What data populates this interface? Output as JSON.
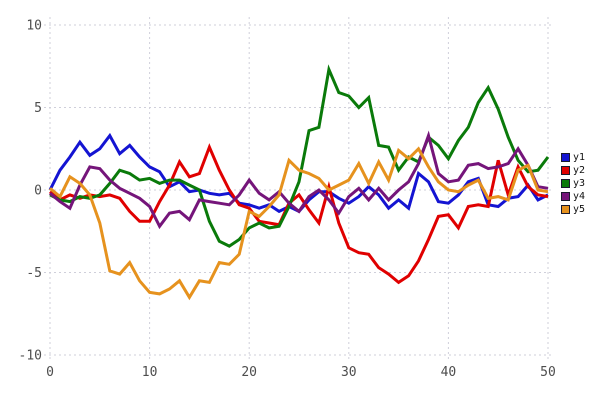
{
  "chart_data": {
    "type": "line",
    "title": "",
    "xlabel": "",
    "ylabel": "",
    "xlim": [
      0,
      50
    ],
    "ylim": [
      -10,
      10
    ],
    "x_ticks": [
      0,
      10,
      20,
      30,
      40,
      50
    ],
    "y_ticks": [
      -10,
      -5,
      0,
      5,
      10
    ],
    "grid": "dotted",
    "legend_position": "right-outside",
    "grid_color": "#cfcfda",
    "tick_label_color": "#4d4d4d",
    "x": [
      0,
      1,
      2,
      3,
      4,
      5,
      6,
      7,
      8,
      9,
      10,
      11,
      12,
      13,
      14,
      15,
      16,
      17,
      18,
      19,
      20,
      21,
      22,
      23,
      24,
      25,
      26,
      27,
      28,
      29,
      30,
      31,
      32,
      33,
      34,
      35,
      36,
      37,
      38,
      39,
      40,
      41,
      42,
      43,
      44,
      45,
      46,
      47,
      48,
      49,
      50
    ],
    "series": [
      {
        "name": "y1",
        "color": "#1414d2",
        "values": [
          0.0,
          1.2,
          2.0,
          2.9,
          2.1,
          2.5,
          3.3,
          2.2,
          2.7,
          2.0,
          1.4,
          1.1,
          0.2,
          0.5,
          -0.1,
          0.0,
          -0.2,
          -0.3,
          -0.2,
          -0.8,
          -0.9,
          -1.1,
          -0.9,
          -1.3,
          -1.0,
          -1.3,
          -0.6,
          -0.1,
          -0.1,
          -0.5,
          -0.8,
          -0.4,
          0.2,
          -0.3,
          -1.1,
          -0.6,
          -1.1,
          1.0,
          0.5,
          -0.7,
          -0.8,
          -0.3,
          0.5,
          0.7,
          -0.9,
          -1.0,
          -0.5,
          -0.4,
          0.3,
          -0.6,
          -0.3
        ]
      },
      {
        "name": "y2",
        "color": "#e00000",
        "values": [
          -0.1,
          -0.6,
          -0.3,
          -0.5,
          -0.3,
          -0.4,
          -0.3,
          -0.5,
          -1.3,
          -1.9,
          -1.9,
          -0.7,
          0.3,
          1.7,
          0.8,
          1.0,
          2.6,
          1.2,
          0.0,
          -0.9,
          -1.1,
          -1.9,
          -2.0,
          -2.1,
          -0.8,
          -0.3,
          -1.2,
          -2.0,
          0.2,
          -2.0,
          -3.5,
          -3.8,
          -3.9,
          -4.7,
          -5.1,
          -5.6,
          -5.2,
          -4.3,
          -3.0,
          -1.6,
          -1.5,
          -2.3,
          -1.0,
          -0.9,
          -1.0,
          1.8,
          -0.3,
          1.4,
          0.2,
          -0.3,
          -0.4
        ]
      },
      {
        "name": "y3",
        "color": "#0a7a0a",
        "values": [
          -0.3,
          -0.6,
          -0.7,
          -0.4,
          -0.5,
          -0.3,
          0.4,
          1.2,
          1.0,
          0.6,
          0.7,
          0.4,
          0.6,
          0.6,
          0.3,
          0.0,
          -1.9,
          -3.1,
          -3.4,
          -3.0,
          -2.3,
          -2.0,
          -2.3,
          -2.2,
          -1.0,
          0.5,
          3.6,
          3.8,
          7.3,
          5.9,
          5.7,
          5.0,
          5.6,
          2.7,
          2.6,
          1.2,
          2.0,
          1.7,
          3.2,
          2.7,
          1.9,
          3.0,
          3.8,
          5.3,
          6.2,
          4.9,
          3.2,
          1.8,
          1.1,
          1.2,
          2.0
        ]
      },
      {
        "name": "y4",
        "color": "#75157a",
        "values": [
          -0.2,
          -0.7,
          -1.1,
          0.3,
          1.4,
          1.3,
          0.6,
          0.1,
          -0.2,
          -0.5,
          -1.0,
          -2.2,
          -1.4,
          -1.3,
          -1.8,
          -0.6,
          -0.7,
          -0.8,
          -0.9,
          -0.3,
          0.6,
          -0.2,
          -0.6,
          -0.1,
          -0.8,
          -1.3,
          -0.4,
          0.0,
          -0.6,
          -1.4,
          -0.4,
          0.1,
          -0.6,
          0.1,
          -0.6,
          0.0,
          0.5,
          1.6,
          3.3,
          1.0,
          0.5,
          0.6,
          1.5,
          1.6,
          1.3,
          1.4,
          1.6,
          2.5,
          1.5,
          0.2,
          0.1
        ]
      },
      {
        "name": "y5",
        "color": "#e6921e",
        "values": [
          0.1,
          -0.4,
          0.8,
          0.4,
          -0.3,
          -2.0,
          -4.9,
          -5.1,
          -4.4,
          -5.5,
          -6.2,
          -6.3,
          -6.0,
          -5.5,
          -6.5,
          -5.5,
          -5.6,
          -4.4,
          -4.5,
          -3.9,
          -1.3,
          -1.6,
          -1.0,
          -0.3,
          1.8,
          1.2,
          1.0,
          0.7,
          0.0,
          0.3,
          0.6,
          1.6,
          0.4,
          1.7,
          0.6,
          2.4,
          1.9,
          2.5,
          1.4,
          0.5,
          0.0,
          -0.1,
          0.3,
          0.6,
          -0.5,
          -0.4,
          -0.6,
          1.2,
          1.5,
          0.0,
          -0.1
        ]
      }
    ]
  },
  "legend": {
    "items": [
      {
        "label": "y1"
      },
      {
        "label": "y2"
      },
      {
        "label": "y3"
      },
      {
        "label": "y4"
      },
      {
        "label": "y5"
      }
    ]
  }
}
